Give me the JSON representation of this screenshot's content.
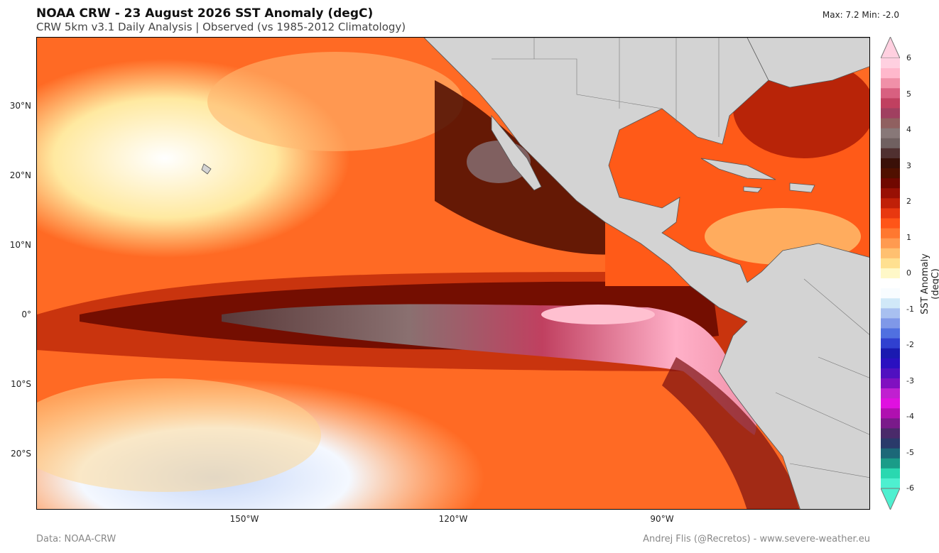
{
  "header": {
    "title": "NOAA CRW - 23 August 2026 SST Anomaly (degC)",
    "subtitle": "CRW 5km v3.1 Daily Analysis  |  Observed (vs 1985-2012 Climatology)",
    "maxmin": "Max: 7.2  Min: -2.0"
  },
  "axes": {
    "lat_ticks": [
      "30°N",
      "20°N",
      "10°N",
      "0°",
      "10°S",
      "20°S"
    ],
    "lon_ticks": [
      "150°W",
      "120°W",
      "90°W"
    ]
  },
  "colorbar": {
    "label": "SST Anomaly (degC)",
    "ticks": [
      "6",
      "5",
      "4",
      "3",
      "2",
      "1",
      "0",
      "-1",
      "-2",
      "-3",
      "-4",
      "-5",
      "-6"
    ],
    "colors": [
      "#4ef0d0",
      "#2ad8b0",
      "#1a9c88",
      "#1c6878",
      "#2a3a6a",
      "#4a2a6a",
      "#7a1a8a",
      "#b010b0",
      "#e010e0",
      "#c020d0",
      "#8010c0",
      "#5010c0",
      "#2a10c0",
      "#1a1ab0",
      "#3040d0",
      "#5070e0",
      "#7f98e8",
      "#a8c0f0",
      "#d0e8f8",
      "#f8fcff",
      "#ffffff",
      "#fff8c8",
      "#ffe090",
      "#ffc070",
      "#ff9a50",
      "#ff7830",
      "#ff5518",
      "#e83810",
      "#c02008",
      "#981004",
      "#700800",
      "#501000",
      "#3a1008",
      "#503030",
      "#706060",
      "#887878",
      "#906060",
      "#a04060",
      "#c04060",
      "#d86080",
      "#f090a8",
      "#ffb8cc",
      "#ffd0e0"
    ]
  },
  "credits": {
    "left": "Data: NOAA-CRW",
    "right": "Andrej Flis (@Recretos) - www.severe-weather.eu"
  }
}
